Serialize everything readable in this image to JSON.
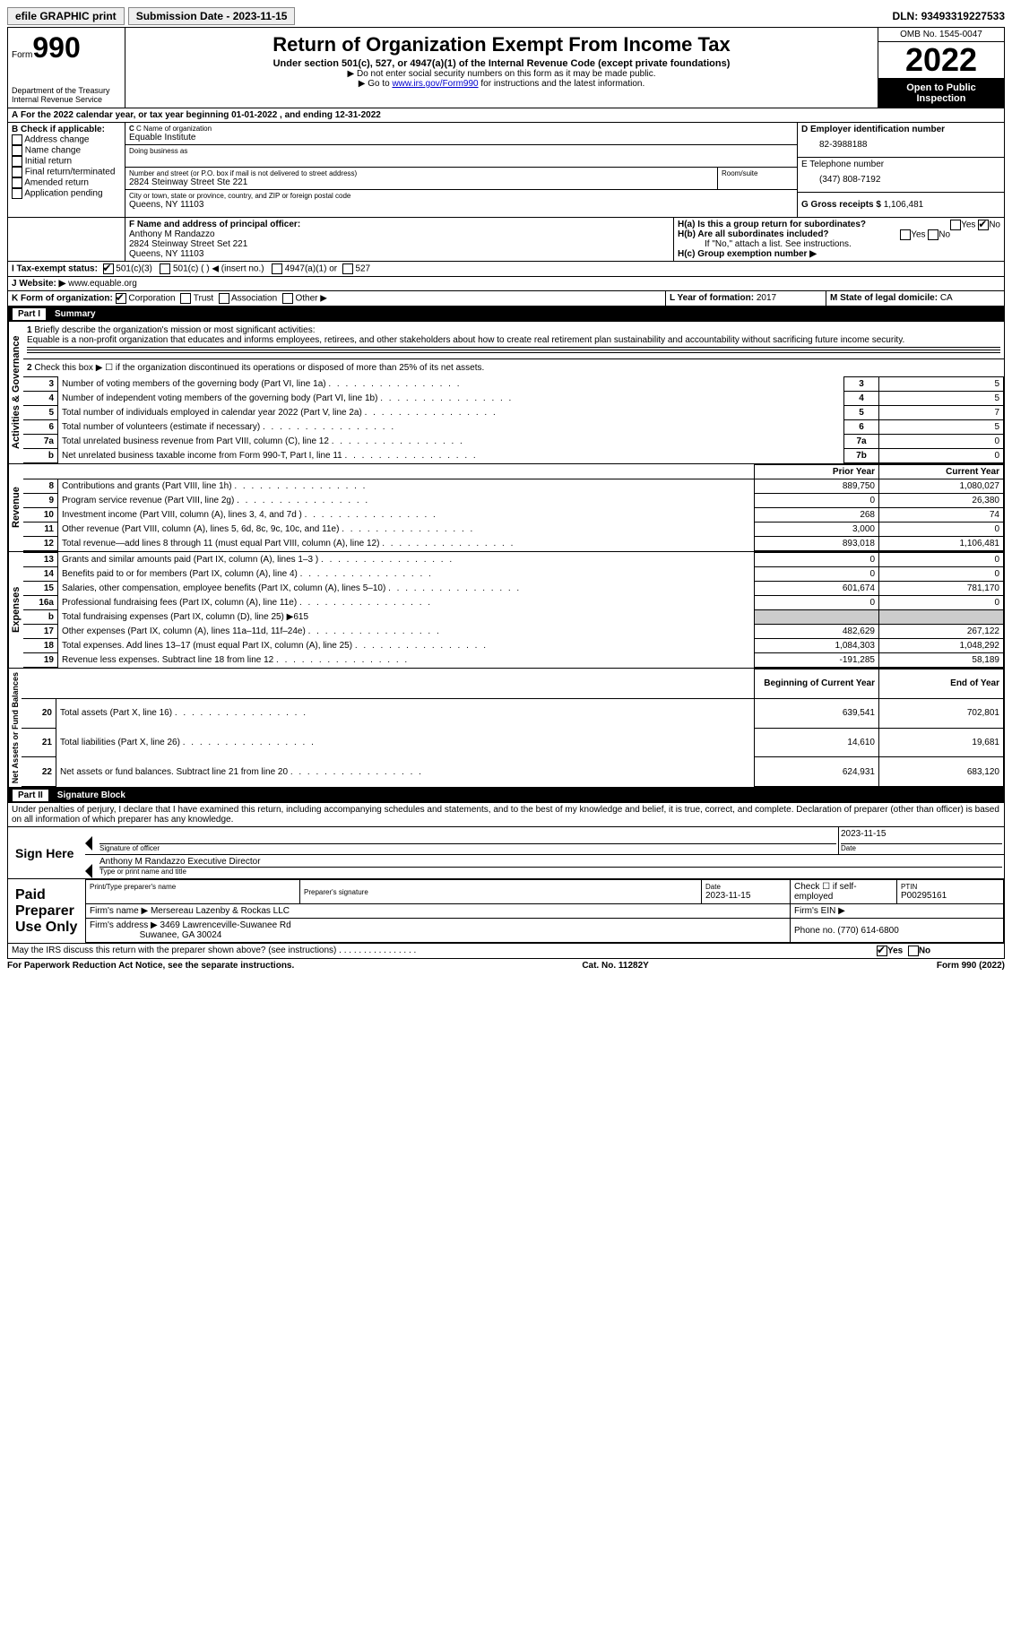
{
  "topbar": {
    "efile": "efile GRAPHIC print",
    "submission": "Submission Date - 2023-11-15",
    "dln_label": "DLN:",
    "dln": "93493319227533"
  },
  "header": {
    "form_label": "Form",
    "form_num": "990",
    "dept": "Department of the Treasury",
    "irs": "Internal Revenue Service",
    "title": "Return of Organization Exempt From Income Tax",
    "sub": "Under section 501(c), 527, or 4947(a)(1) of the Internal Revenue Code (except private foundations)",
    "note1": "▶ Do not enter social security numbers on this form as it may be made public.",
    "note2_pre": "▶ Go to ",
    "note2_link": "www.irs.gov/Form990",
    "note2_post": " for instructions and the latest information.",
    "omb": "OMB No. 1545-0047",
    "year": "2022",
    "inspection": "Open to Public Inspection"
  },
  "sectionA": {
    "cal_year": "For the 2022 calendar year, or tax year beginning 01-01-2022    , and ending 12-31-2022",
    "A_label": "A",
    "B_label": "B Check if applicable:",
    "checks": [
      "Address change",
      "Name change",
      "Initial return",
      "Final return/terminated",
      "Amended return",
      "Application pending"
    ],
    "C_label": "C Name of organization",
    "org_name": "Equable Institute",
    "dba_label": "Doing business as",
    "addr_label": "Number and street (or P.O. box if mail is not delivered to street address)",
    "addr": "2824 Steinway Street Ste 221",
    "room_label": "Room/suite",
    "city_label": "City or town, state or province, country, and ZIP or foreign postal code",
    "city": "Queens, NY  11103",
    "D_label": "D Employer identification number",
    "ein": "82-3988188",
    "E_label": "E Telephone number",
    "phone": "(347) 808-7192",
    "G_label": "G Gross receipts $",
    "gross": "1,106,481",
    "F_label": "F Name and address of principal officer:",
    "officer_name": "Anthony M Randazzo",
    "officer_addr1": "2824 Steinway Street Set 221",
    "officer_addr2": "Queens, NY  11103",
    "Ha_label": "H(a)  Is this a group return for subordinates?",
    "Hb_label": "H(b)  Are all subordinates included?",
    "H_note": "If \"No,\" attach a list. See instructions.",
    "Hc_label": "H(c)  Group exemption number ▶",
    "yes": "Yes",
    "no": "No",
    "I_label": "I  Tax-exempt status:",
    "I_opts": [
      "501(c)(3)",
      "501(c) (  ) ◀ (insert no.)",
      "4947(a)(1) or",
      "527"
    ],
    "J_label": "J  Website: ▶",
    "website": "www.equable.org",
    "K_label": "K Form of organization:",
    "K_opts": [
      "Corporation",
      "Trust",
      "Association",
      "Other ▶"
    ],
    "L_label": "L Year of formation:",
    "L_val": "2017",
    "M_label": "M State of legal domicile:",
    "M_val": "CA"
  },
  "part1": {
    "hdr_part": "Part I",
    "hdr_title": "Summary",
    "governance_label": "Activities & Governance",
    "revenue_label": "Revenue",
    "expenses_label": "Expenses",
    "netassets_label": "Net Assets or Fund Balances",
    "line1_label": "Briefly describe the organization's mission or most significant activities:",
    "line1_text": "Equable is a non-profit organization that educates and informs employees, retirees, and other stakeholders about how to create real retirement plan sustainability and accountability without sacrificing future income security.",
    "line2": "Check this box ▶ ☐  if the organization discontinued its operations or disposed of more than 25% of its net assets.",
    "rows_gov": [
      {
        "n": "3",
        "t": "Number of voting members of the governing body (Part VI, line 1a)",
        "rn": "3",
        "v": "5"
      },
      {
        "n": "4",
        "t": "Number of independent voting members of the governing body (Part VI, line 1b)",
        "rn": "4",
        "v": "5"
      },
      {
        "n": "5",
        "t": "Total number of individuals employed in calendar year 2022 (Part V, line 2a)",
        "rn": "5",
        "v": "7"
      },
      {
        "n": "6",
        "t": "Total number of volunteers (estimate if necessary)",
        "rn": "6",
        "v": "5"
      },
      {
        "n": "7a",
        "t": "Total unrelated business revenue from Part VIII, column (C), line 12",
        "rn": "7a",
        "v": "0"
      },
      {
        "n": "b",
        "t": "Net unrelated business taxable income from Form 990-T, Part I, line 11",
        "rn": "7b",
        "v": "0"
      }
    ],
    "col_prior": "Prior Year",
    "col_current": "Current Year",
    "rows_rev": [
      {
        "n": "8",
        "t": "Contributions and grants (Part VIII, line 1h)",
        "p": "889,750",
        "c": "1,080,027"
      },
      {
        "n": "9",
        "t": "Program service revenue (Part VIII, line 2g)",
        "p": "0",
        "c": "26,380"
      },
      {
        "n": "10",
        "t": "Investment income (Part VIII, column (A), lines 3, 4, and 7d )",
        "p": "268",
        "c": "74"
      },
      {
        "n": "11",
        "t": "Other revenue (Part VIII, column (A), lines 5, 6d, 8c, 9c, 10c, and 11e)",
        "p": "3,000",
        "c": "0"
      },
      {
        "n": "12",
        "t": "Total revenue—add lines 8 through 11 (must equal Part VIII, column (A), line 12)",
        "p": "893,018",
        "c": "1,106,481"
      }
    ],
    "rows_exp": [
      {
        "n": "13",
        "t": "Grants and similar amounts paid (Part IX, column (A), lines 1–3 )",
        "p": "0",
        "c": "0"
      },
      {
        "n": "14",
        "t": "Benefits paid to or for members (Part IX, column (A), line 4)",
        "p": "0",
        "c": "0"
      },
      {
        "n": "15",
        "t": "Salaries, other compensation, employee benefits (Part IX, column (A), lines 5–10)",
        "p": "601,674",
        "c": "781,170"
      },
      {
        "n": "16a",
        "t": "Professional fundraising fees (Part IX, column (A), line 11e)",
        "p": "0",
        "c": "0"
      }
    ],
    "line16b": "Total fundraising expenses (Part IX, column (D), line 25) ▶615",
    "rows_exp2": [
      {
        "n": "17",
        "t": "Other expenses (Part IX, column (A), lines 11a–11d, 11f–24e)",
        "p": "482,629",
        "c": "267,122"
      },
      {
        "n": "18",
        "t": "Total expenses. Add lines 13–17 (must equal Part IX, column (A), line 25)",
        "p": "1,084,303",
        "c": "1,048,292"
      },
      {
        "n": "19",
        "t": "Revenue less expenses. Subtract line 18 from line 12",
        "p": "-191,285",
        "c": "58,189"
      }
    ],
    "col_begin": "Beginning of Current Year",
    "col_end": "End of Year",
    "rows_net": [
      {
        "n": "20",
        "t": "Total assets (Part X, line 16)",
        "p": "639,541",
        "c": "702,801"
      },
      {
        "n": "21",
        "t": "Total liabilities (Part X, line 26)",
        "p": "14,610",
        "c": "19,681"
      },
      {
        "n": "22",
        "t": "Net assets or fund balances. Subtract line 21 from line 20",
        "p": "624,931",
        "c": "683,120"
      }
    ]
  },
  "part2": {
    "hdr_part": "Part II",
    "hdr_title": "Signature Block",
    "jurat": "Under penalties of perjury, I declare that I have examined this return, including accompanying schedules and statements, and to the best of my knowledge and belief, it is true, correct, and complete. Declaration of preparer (other than officer) is based on all information of which preparer has any knowledge.",
    "sign_here": "Sign Here",
    "date": "2023-11-15",
    "sig_label": "Signature of officer",
    "date_label": "Date",
    "name_title": "Anthony M Randazzo  Executive Director",
    "type_label": "Type or print name and title",
    "paid_label": "Paid Preparer Use Only",
    "prep_name_label": "Print/Type preparer's name",
    "prep_sig_label": "Preparer's signature",
    "prep_date_label": "Date",
    "prep_date": "2023-11-15",
    "check_self": "Check ☐ if self-employed",
    "ptin_label": "PTIN",
    "ptin": "P00295161",
    "firm_name_label": "Firm's name    ▶",
    "firm_name": "Mersereau Lazenby & Rockas LLC",
    "firm_ein_label": "Firm's EIN ▶",
    "firm_addr_label": "Firm's address ▶",
    "firm_addr1": "3469 Lawrenceville-Suwanee Rd",
    "firm_addr2": "Suwanee, GA  30024",
    "firm_phone_label": "Phone no.",
    "firm_phone": "(770) 614-6800",
    "discuss": "May the IRS discuss this return with the preparer shown above? (see instructions)"
  },
  "footer": {
    "pra": "For Paperwork Reduction Act Notice, see the separate instructions.",
    "cat": "Cat. No. 11282Y",
    "form": "Form 990 (2022)"
  }
}
